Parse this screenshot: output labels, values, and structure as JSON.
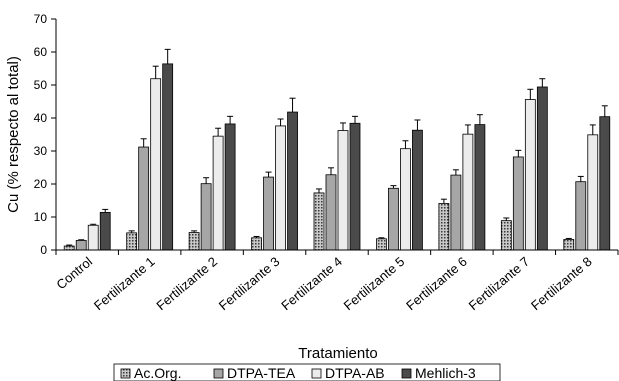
{
  "chart_data": {
    "type": "bar",
    "ylabel": "Cu (% respecto al total)",
    "xlabel": "Tratamiento",
    "ylim": [
      0,
      70
    ],
    "yticks": [
      0,
      10,
      20,
      30,
      40,
      50,
      60,
      70
    ],
    "grid": false,
    "legend_position": "bottom",
    "categories": [
      "Control",
      "Fertilizante 1",
      "Fertilizante 2",
      "Fertilizante 3",
      "Fertilizante 4",
      "Fertilizante 5",
      "Fertilizante 6",
      "Fertilizante 7",
      "Fertilizante 8"
    ],
    "series": [
      {
        "name": "Ac.Org.",
        "pattern": "dots",
        "color": "#8a8a8a",
        "values": [
          1.2,
          5.2,
          5.3,
          3.7,
          17.3,
          3.4,
          14.1,
          8.9,
          3.2
        ],
        "errors": [
          0.3,
          0.6,
          0.5,
          0.4,
          1.2,
          0.3,
          1.3,
          0.8,
          0.3
        ]
      },
      {
        "name": "DTPA-TEA",
        "pattern": "solid",
        "color": "#a6a6a6",
        "values": [
          2.9,
          31.2,
          20.1,
          22.1,
          22.8,
          18.7,
          22.7,
          28.2,
          20.7
        ],
        "errors": [
          0.2,
          2.5,
          1.8,
          1.5,
          2.1,
          0.8,
          1.6,
          2.0,
          1.6
        ]
      },
      {
        "name": "DTPA-AB",
        "pattern": "solid",
        "color": "#ececec",
        "values": [
          7.5,
          51.9,
          34.5,
          37.6,
          36.2,
          30.7,
          35.1,
          45.6,
          34.9
        ],
        "errors": [
          0.3,
          3.8,
          2.4,
          2.1,
          2.3,
          2.4,
          2.8,
          3.1,
          3.0
        ]
      },
      {
        "name": "Mehlich-3",
        "pattern": "solid",
        "color": "#4a4a4a",
        "values": [
          11.4,
          56.4,
          38.2,
          41.8,
          38.4,
          36.3,
          38.0,
          49.4,
          40.4
        ],
        "errors": [
          0.9,
          4.4,
          2.3,
          4.2,
          2.1,
          3.1,
          3.0,
          2.5,
          3.3
        ]
      }
    ]
  }
}
